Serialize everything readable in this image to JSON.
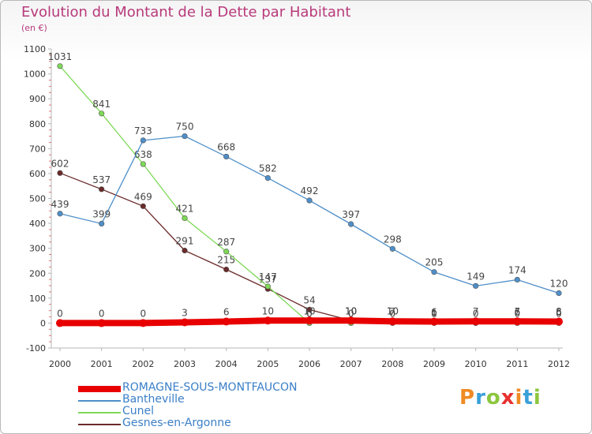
{
  "header": {
    "title": "Evolution du Montant de la Dette par Habitant",
    "subtitle": "(en €)"
  },
  "logo": {
    "text": "Proxiti",
    "colors": [
      "#f08a24",
      "#3aa0d8",
      "#8cc63f",
      "#e8312f"
    ]
  },
  "chart_data": {
    "type": "line",
    "title": "Evolution du Montant de la Dette par Habitant",
    "subtitle": "(en €)",
    "x": [
      "2000",
      "2001",
      "2002",
      "2003",
      "2004",
      "2005",
      "2006",
      "2007",
      "2008",
      "2009",
      "2010",
      "2011",
      "2012"
    ],
    "ylim": [
      -100,
      1100
    ],
    "yticks": [
      -100,
      0,
      100,
      200,
      300,
      400,
      500,
      600,
      700,
      800,
      900,
      1000,
      1100
    ],
    "grid": false,
    "legend_position": "bottom",
    "series": [
      {
        "name": "ROMAGNE-SOUS-MONTFAUCON",
        "color": "#e80000",
        "values": [
          0,
          0,
          0,
          3,
          6,
          10,
          10,
          10,
          7,
          6,
          7,
          7,
          6
        ]
      },
      {
        "name": "Bantheville",
        "color": "#4f8fc9",
        "values": [
          439,
          399,
          733,
          750,
          668,
          582,
          492,
          397,
          298,
          205,
          149,
          174,
          120
        ]
      },
      {
        "name": "Cunel",
        "color": "#7ed957",
        "values": [
          1031,
          841,
          638,
          421,
          287,
          147,
          0,
          0,
          0,
          0,
          null,
          0,
          0
        ]
      },
      {
        "name": "Gesnes-en-Argonne",
        "color": "#6b2a2a",
        "values": [
          602,
          537,
          469,
          291,
          215,
          137,
          54,
          10,
          10,
          1,
          0,
          6,
          8
        ]
      }
    ]
  }
}
